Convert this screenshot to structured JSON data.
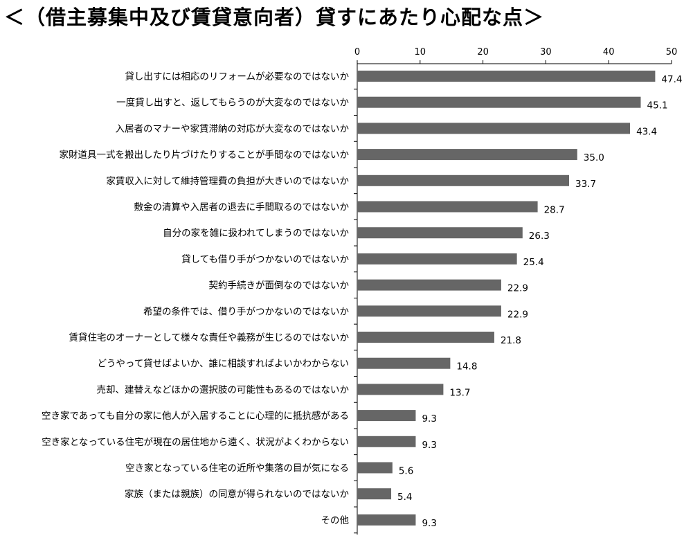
{
  "chart_data": {
    "type": "bar",
    "orientation": "horizontal",
    "title": "＜（借主募集中及び賃貸意向者）貸すにあたり心配な点＞",
    "xlim": [
      0,
      50
    ],
    "xticks": [
      0,
      10,
      20,
      30,
      40,
      50
    ],
    "x_axis_position": "top",
    "grid": false,
    "bar_color": "#666666",
    "categories": [
      "貸し出すには相応のリフォームが必要なのではないか",
      "一度貸し出すと、返してもらうのが大変なのではないか",
      "入居者のマナーや家賃滞納の対応が大変なのではないか",
      "家財道具一式を搬出したり片づけたりすることが手間なのではないか",
      "家賃収入に対して維持管理費の負担が大きいのではないか",
      "敷金の清算や入居者の退去に手間取るのではないか",
      "自分の家を雑に扱われてしまうのではないか",
      "貸しても借り手がつかないのではないか",
      "契約手続きが面倒なのではないか",
      "希望の条件では、借り手がつかないのではないか",
      "賃貸住宅のオーナーとして様々な責任や義務が生じるのではないか",
      "どうやって貸せばよいか、誰に相談すればよいかわからない",
      "売却、建替えなどほかの選択肢の可能性もあるのではないか",
      "空き家であっても自分の家に他人が入居することに心理的に抵抗感がある",
      "空き家となっている住宅が現在の居住地から遠く、状況がよくわからない",
      "空き家となっている住宅の近所や集落の目が気になる",
      "家族（または親族）の同意が得られないのではないか",
      "その他"
    ],
    "values": [
      47.4,
      45.1,
      43.4,
      35.0,
      33.7,
      28.7,
      26.3,
      25.4,
      22.9,
      22.9,
      21.8,
      14.8,
      13.7,
      9.3,
      9.3,
      5.6,
      5.4,
      9.3
    ],
    "value_labels": [
      "47.4",
      "45.1",
      "43.4",
      "35.0",
      "33.7",
      "28.7",
      "26.3",
      "25.4",
      "22.9",
      "22.9",
      "21.8",
      "14.8",
      "13.7",
      "9.3",
      "9.3",
      "5.6",
      "5.4",
      "9.3"
    ]
  }
}
